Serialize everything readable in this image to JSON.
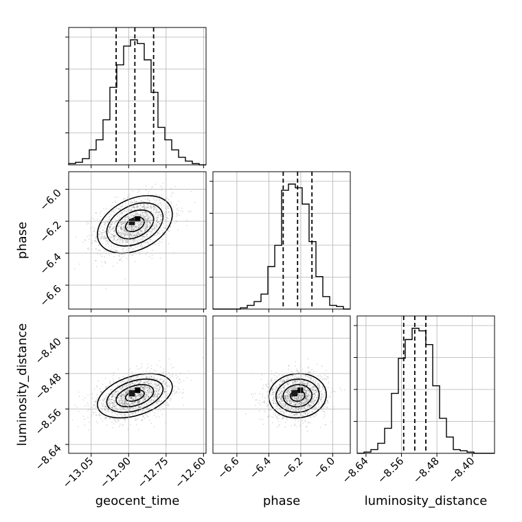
{
  "chart_data": {
    "type": "corner",
    "parameters": [
      {
        "name": "geocent_time",
        "label": "geocent_time",
        "range": [
          -13.14,
          -12.59
        ],
        "ticks": [
          -13.05,
          -12.9,
          -12.75,
          -12.6
        ],
        "tick_labels": [
          "−13.05",
          "−12.90",
          "−12.75",
          "−12.60"
        ],
        "quantiles": [
          -12.95,
          -12.875,
          -12.8
        ],
        "hist_edges": [
          -13.14,
          -13.1125,
          -13.085,
          -13.0575,
          -13.03,
          -13.0025,
          -12.975,
          -12.9475,
          -12.92,
          -12.8925,
          -12.865,
          -12.8375,
          -12.81,
          -12.7825,
          -12.755,
          -12.7275,
          -12.7,
          -12.6725,
          -12.645,
          -12.6175,
          -12.59
        ],
        "hist_counts": [
          0.01,
          0.02,
          0.05,
          0.12,
          0.2,
          0.36,
          0.62,
          0.8,
          0.95,
          1.0,
          0.97,
          0.84,
          0.58,
          0.3,
          0.2,
          0.12,
          0.06,
          0.03,
          0.01,
          0.0
        ]
      },
      {
        "name": "phase",
        "label": "phase",
        "range": [
          -6.75,
          -5.89
        ],
        "ticks": [
          -6.6,
          -6.4,
          -6.2,
          -6.0
        ],
        "tick_labels": [
          "−6.6",
          "−6.4",
          "−6.2",
          "−6.0"
        ],
        "quantiles": [
          -6.31,
          -6.22,
          -6.13
        ],
        "hist_edges": [
          -6.75,
          -6.707,
          -6.664,
          -6.621,
          -6.578,
          -6.535,
          -6.492,
          -6.449,
          -6.406,
          -6.363,
          -6.32,
          -6.277,
          -6.234,
          -6.191,
          -6.148,
          -6.105,
          -6.062,
          -6.019,
          -5.976,
          -5.933,
          -5.89
        ],
        "hist_counts": [
          0.0,
          0.0,
          0.0,
          0.0,
          0.01,
          0.03,
          0.06,
          0.12,
          0.34,
          0.51,
          0.95,
          1.0,
          0.97,
          0.84,
          0.54,
          0.26,
          0.1,
          0.03,
          0.02,
          0.0
        ]
      },
      {
        "name": "luminosity_distance",
        "label": "luminosity_distance",
        "range": [
          -8.66,
          -8.35
        ],
        "ticks": [
          -8.64,
          -8.56,
          -8.48,
          -8.4
        ],
        "tick_labels": [
          "−8.64",
          "−8.56",
          "−8.48",
          "−8.40"
        ],
        "quantiles": [
          -8.555,
          -8.53,
          -8.505
        ],
        "hist_edges": [
          -8.66,
          -8.6445,
          -8.629,
          -8.6135,
          -8.598,
          -8.5825,
          -8.567,
          -8.5515,
          -8.536,
          -8.5205,
          -8.505,
          -8.4895,
          -8.474,
          -8.4585,
          -8.443,
          -8.4275,
          -8.412,
          -8.3965,
          -8.381,
          -8.3655,
          -8.35
        ],
        "hist_counts": [
          0.0,
          0.01,
          0.03,
          0.08,
          0.2,
          0.48,
          0.76,
          0.91,
          1.0,
          0.98,
          0.87,
          0.54,
          0.28,
          0.13,
          0.03,
          0.02,
          0.01,
          0.0,
          0.0,
          0.0
        ]
      }
    ],
    "pairs": [
      {
        "x": "geocent_time",
        "y": "phase",
        "mean": [
          -12.875,
          -6.22
        ],
        "std": [
          0.075,
          0.09
        ],
        "corr": 0.35
      },
      {
        "x": "geocent_time",
        "y": "luminosity_distance",
        "mean": [
          -12.875,
          -8.53
        ],
        "std": [
          0.075,
          0.025
        ],
        "corr": 0.4
      },
      {
        "x": "phase",
        "y": "luminosity_distance",
        "mean": [
          -6.22,
          -8.53
        ],
        "std": [
          0.09,
          0.025
        ],
        "corr": 0.05
      }
    ],
    "contour_levels_sigma": [
      0.5,
      1.0,
      1.5,
      2.0
    ],
    "grid": true
  }
}
